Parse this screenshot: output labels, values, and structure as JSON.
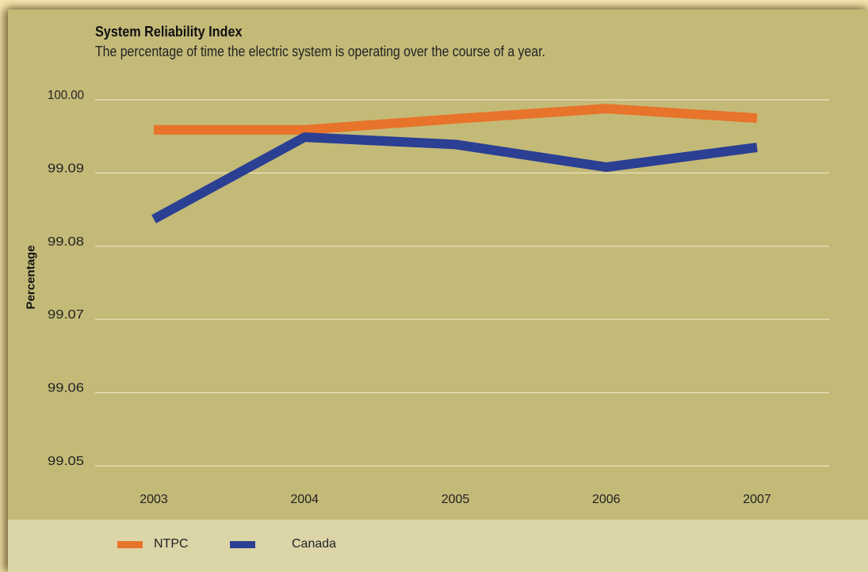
{
  "chart_data": {
    "type": "line",
    "title": "System Reliability Index",
    "subtitle": "The percentage of time the electric system is operating over the course of a year.",
    "xlabel": "",
    "ylabel": "Percentage",
    "categories": [
      "2003",
      "2004",
      "2005",
      "2006",
      "2007"
    ],
    "y_tick_labels": [
      "99.05",
      "99.06",
      "99.07",
      "99.08",
      "99.09",
      "100.00"
    ],
    "y_tick_positions": [
      0,
      1,
      2,
      3,
      4,
      5
    ],
    "ylim": [
      0,
      5
    ],
    "grid": true,
    "legend_position": "bottom",
    "series": [
      {
        "name": "NTPC",
        "color": "#e8732a",
        "values": [
          4.59,
          4.59,
          4.74,
          4.88,
          4.75
        ]
      },
      {
        "name": "Canada",
        "color": "#2b3f93",
        "values": [
          3.37,
          4.49,
          4.39,
          4.08,
          4.35
        ]
      }
    ]
  },
  "colors": {
    "background_outer": "#f5e3ad",
    "panel": "#c4ba78",
    "legend_band": "#dbd5a8",
    "gridline": "#e9e4c2"
  }
}
